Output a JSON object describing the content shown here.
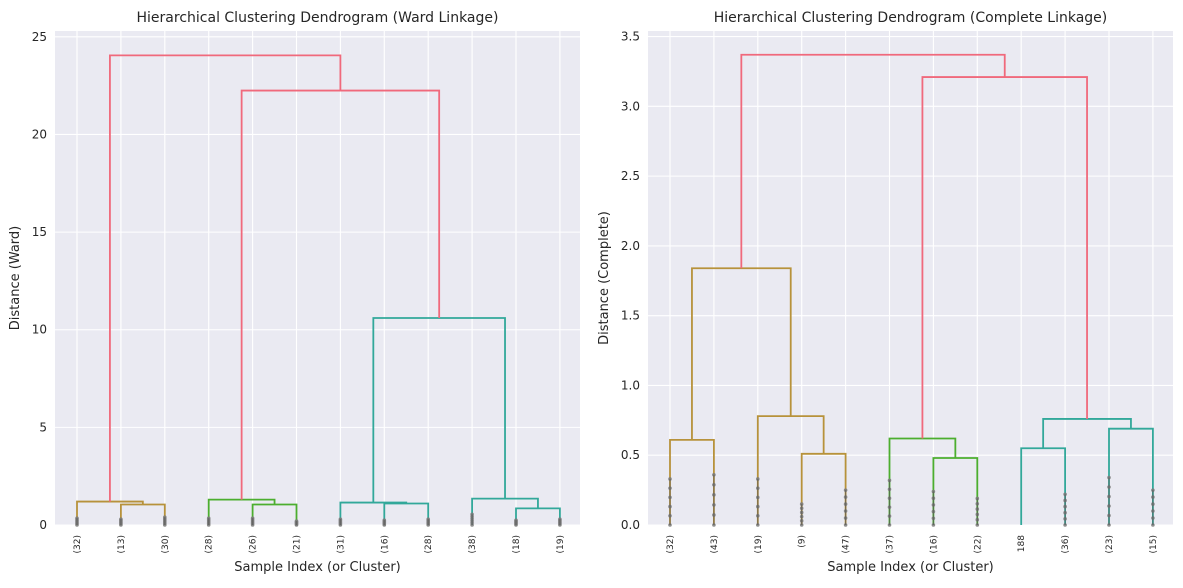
{
  "chart_data": [
    {
      "type": "dendrogram",
      "title": "Hierarchical Clustering Dendrogram (Ward Linkage)",
      "xlabel": "Sample Index (or Cluster)",
      "ylabel": "Distance (Ward)",
      "ylim": [
        0,
        25.3
      ],
      "yticks": [
        0,
        5,
        10,
        15,
        20,
        25
      ],
      "grid": true,
      "leaves": [
        "(32)",
        "(13)",
        "(30)",
        "(28)",
        "(26)",
        "(21)",
        "(31)",
        "(16)",
        "(28)",
        "(38)",
        "(18)",
        "(19)"
      ],
      "leaf_max_height": [
        0.35,
        0.3,
        0.4,
        0.35,
        0.35,
        0.2,
        0.3,
        0.25,
        0.3,
        0.55,
        0.25,
        0.3
      ],
      "merges": [
        {
          "a": 1,
          "b": 2,
          "h": 1.05,
          "color": "#b7923b"
        },
        {
          "a": 0,
          "b": 12,
          "h": 1.2,
          "color": "#b7923b"
        },
        {
          "a": 4,
          "b": 5,
          "h": 1.05,
          "color": "#4cae2f"
        },
        {
          "a": 3,
          "b": 14,
          "h": 1.3,
          "color": "#4cae2f"
        },
        {
          "a": 7,
          "b": 8,
          "h": 1.1,
          "color": "#32a89a"
        },
        {
          "a": 6,
          "b": 16,
          "h": 1.15,
          "color": "#32a89a"
        },
        {
          "a": 10,
          "b": 11,
          "h": 0.85,
          "color": "#32a89a"
        },
        {
          "a": 9,
          "b": 18,
          "h": 1.35,
          "color": "#32a89a"
        },
        {
          "a": 17,
          "b": 19,
          "h": 10.6,
          "color": "#32a89a"
        },
        {
          "a": 15,
          "b": 20,
          "h": 22.25,
          "color": "#f0697c"
        },
        {
          "a": 13,
          "b": 21,
          "h": 24.05,
          "color": "#f0697c"
        }
      ]
    },
    {
      "type": "dendrogram",
      "title": "Hierarchical Clustering Dendrogram (Complete Linkage)",
      "xlabel": "Sample Index (or Cluster)",
      "ylabel": "Distance (Complete)",
      "ylim": [
        0,
        3.54
      ],
      "yticks": [
        0.0,
        0.5,
        1.0,
        1.5,
        2.0,
        2.5,
        3.0,
        3.5
      ],
      "grid": true,
      "leaves": [
        "(32)",
        "(43)",
        "(19)",
        "(9)",
        "(47)",
        "(37)",
        "(16)",
        "(22)",
        "188",
        "(36)",
        "(23)",
        "(15)"
      ],
      "leaf_max_height": [
        0.33,
        0.36,
        0.33,
        0.15,
        0.25,
        0.32,
        0.24,
        0.19,
        0,
        0.22,
        0.34,
        0.25
      ],
      "merges": [
        {
          "a": 0,
          "b": 1,
          "h": 0.61,
          "color": "#b7923b"
        },
        {
          "a": 3,
          "b": 4,
          "h": 0.51,
          "color": "#b7923b"
        },
        {
          "a": 2,
          "b": 13,
          "h": 0.78,
          "color": "#b7923b"
        },
        {
          "a": 12,
          "b": 14,
          "h": 1.84,
          "color": "#b7923b"
        },
        {
          "a": 6,
          "b": 7,
          "h": 0.48,
          "color": "#4cae2f"
        },
        {
          "a": 5,
          "b": 16,
          "h": 0.62,
          "color": "#4cae2f"
        },
        {
          "a": 8,
          "b": 9,
          "h": 0.55,
          "color": "#32a89a"
        },
        {
          "a": 10,
          "b": 11,
          "h": 0.69,
          "color": "#32a89a"
        },
        {
          "a": 18,
          "b": 19,
          "h": 0.76,
          "color": "#32a89a"
        },
        {
          "a": 17,
          "b": 20,
          "h": 3.21,
          "color": "#f0697c"
        },
        {
          "a": 15,
          "b": 21,
          "h": 3.37,
          "color": "#f0697c"
        }
      ]
    }
  ]
}
